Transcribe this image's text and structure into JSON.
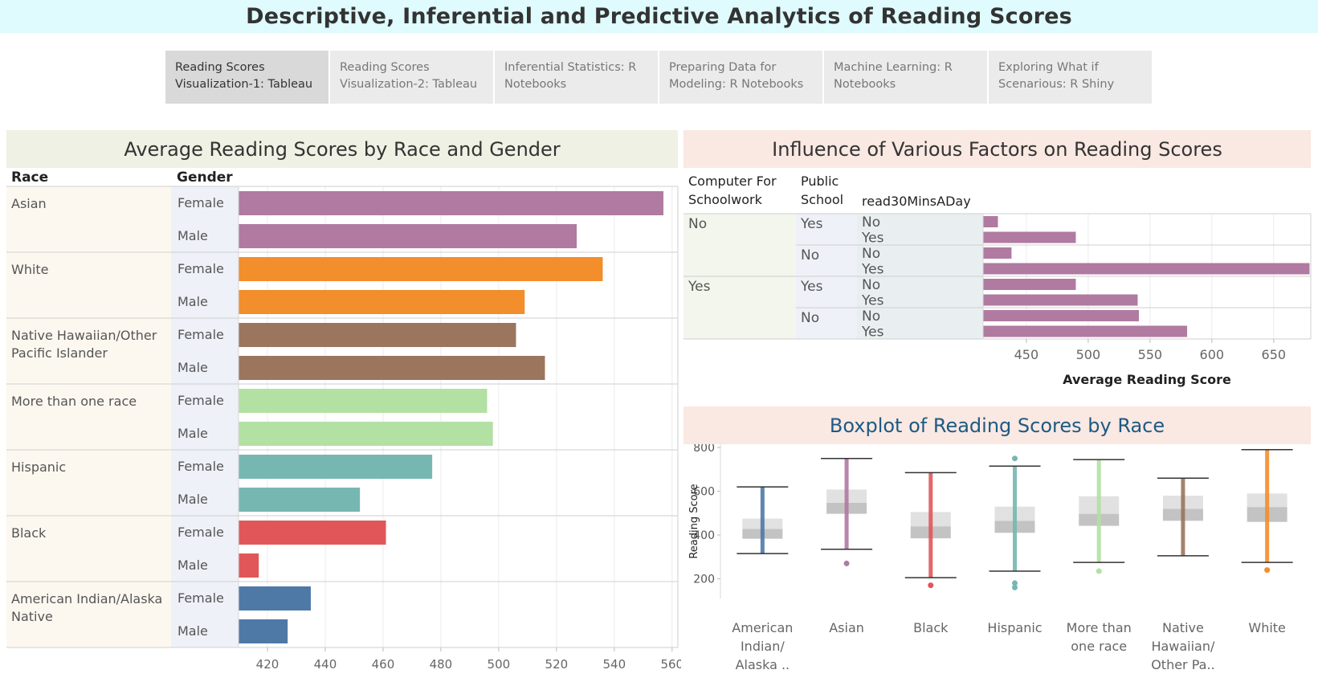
{
  "title": "Descriptive, Inferential and Predictive Analytics of Reading Scores",
  "tabs": [
    {
      "label": "Reading Scores Visualization-1: Tableau",
      "active": true
    },
    {
      "label": "Reading Scores Visualization-2: Tableau",
      "active": false
    },
    {
      "label": "Inferential Statistics: R Notebooks",
      "active": false
    },
    {
      "label": "Preparing Data for Modeling: R Notebooks",
      "active": false
    },
    {
      "label": "Machine Learning: R Notebooks",
      "active": false
    },
    {
      "label": "Exploring What if Scenarious: R Shiny",
      "active": false
    }
  ],
  "colors": {
    "asian": "#b07aa1",
    "white": "#f28e2b",
    "nhopi": "#9c755f",
    "multi": "#b3e0a3",
    "hispanic": "#76b7b2",
    "black": "#e15759",
    "aian": "#4e79a7",
    "factor": "#b07aa1"
  },
  "chart_data": [
    {
      "type": "bar",
      "title": "Average Reading Scores by Race and Gender",
      "row_headers": [
        "Race",
        "Gender"
      ],
      "xlim": [
        410,
        562
      ],
      "xticks": [
        420,
        440,
        460,
        480,
        500,
        520,
        540,
        560
      ],
      "groups": [
        {
          "race": "Asian",
          "color_key": "asian",
          "rows": [
            {
              "gender": "Female",
              "value": 557
            },
            {
              "gender": "Male",
              "value": 527
            }
          ]
        },
        {
          "race": "White",
          "color_key": "white",
          "rows": [
            {
              "gender": "Female",
              "value": 536
            },
            {
              "gender": "Male",
              "value": 509
            }
          ]
        },
        {
          "race": "Native Hawaiian/Other Pacific Islander",
          "race_lines": [
            "Native Hawaiian/Other",
            "Pacific Islander"
          ],
          "color_key": "nhopi",
          "rows": [
            {
              "gender": "Female",
              "value": 506
            },
            {
              "gender": "Male",
              "value": 516
            }
          ]
        },
        {
          "race": "More than one race",
          "color_key": "multi",
          "rows": [
            {
              "gender": "Female",
              "value": 496
            },
            {
              "gender": "Male",
              "value": 498
            }
          ]
        },
        {
          "race": "Hispanic",
          "color_key": "hispanic",
          "rows": [
            {
              "gender": "Female",
              "value": 477
            },
            {
              "gender": "Male",
              "value": 452
            }
          ]
        },
        {
          "race": "Black",
          "color_key": "black",
          "rows": [
            {
              "gender": "Female",
              "value": 461
            },
            {
              "gender": "Male",
              "value": 417
            }
          ]
        },
        {
          "race": "American Indian/Alaska Native",
          "race_lines": [
            "American Indian/Alaska",
            "Native"
          ],
          "color_key": "aian",
          "rows": [
            {
              "gender": "Female",
              "value": 435
            },
            {
              "gender": "Male",
              "value": 427
            }
          ]
        }
      ]
    },
    {
      "type": "bar",
      "title": "Influence of Various Factors on Reading Scores",
      "row_headers": [
        [
          "Computer For",
          "Schoolwork"
        ],
        [
          "Public",
          "School"
        ],
        [
          "read30MinsADay"
        ]
      ],
      "xlabel": "Average Reading Score",
      "xlim": [
        415,
        680
      ],
      "xticks": [
        450,
        500,
        550,
        600,
        650
      ],
      "groups": [
        {
          "computer": "No",
          "subgroups": [
            {
              "public": "Yes",
              "rows": [
                {
                  "read": "No",
                  "value": 427
                },
                {
                  "read": "Yes",
                  "value": 490
                }
              ]
            },
            {
              "public": "No",
              "rows": [
                {
                  "read": "No",
                  "value": 438
                },
                {
                  "read": "Yes",
                  "value": 679
                }
              ]
            }
          ]
        },
        {
          "computer": "Yes",
          "subgroups": [
            {
              "public": "Yes",
              "rows": [
                {
                  "read": "No",
                  "value": 490
                },
                {
                  "read": "Yes",
                  "value": 540
                }
              ]
            },
            {
              "public": "No",
              "rows": [
                {
                  "read": "No",
                  "value": 541
                },
                {
                  "read": "Yes",
                  "value": 580
                }
              ]
            }
          ]
        }
      ]
    },
    {
      "type": "boxplot",
      "title": "Boxplot of Reading Scores  by Race",
      "ylabel": "Reading Score",
      "ylim": [
        110,
        815
      ],
      "yticks": [
        200,
        400,
        600,
        800
      ],
      "boxes": [
        {
          "label_lines": [
            "American",
            "Indian/",
            "Alaska .."
          ],
          "color_key": "aian",
          "min": 315,
          "q1": 383,
          "median": 428,
          "q3": 475,
          "max": 620,
          "outliers": []
        },
        {
          "label_lines": [
            "Asian"
          ],
          "color_key": "asian",
          "min": 335,
          "q1": 497,
          "median": 547,
          "q3": 608,
          "max": 750,
          "outliers": [
            270
          ]
        },
        {
          "label_lines": [
            "Black"
          ],
          "color_key": "black",
          "min": 205,
          "q1": 385,
          "median": 440,
          "q3": 505,
          "max": 685,
          "outliers": [
            170
          ]
        },
        {
          "label_lines": [
            "Hispanic"
          ],
          "color_key": "hispanic",
          "min": 235,
          "q1": 410,
          "median": 465,
          "q3": 530,
          "max": 715,
          "outliers": [
            160,
            180,
            750
          ]
        },
        {
          "label_lines": [
            "More than",
            "one race"
          ],
          "color_key": "multi",
          "min": 275,
          "q1": 442,
          "median": 497,
          "q3": 577,
          "max": 745,
          "outliers": [
            235
          ]
        },
        {
          "label_lines": [
            "Native",
            "Hawaiian/",
            "Other Pa.."
          ],
          "color_key": "nhopi",
          "min": 305,
          "q1": 465,
          "median": 520,
          "q3": 580,
          "max": 660,
          "outliers": []
        },
        {
          "label_lines": [
            "White"
          ],
          "color_key": "white",
          "min": 275,
          "q1": 460,
          "median": 528,
          "q3": 590,
          "max": 790,
          "outliers": [
            240
          ]
        }
      ]
    }
  ]
}
